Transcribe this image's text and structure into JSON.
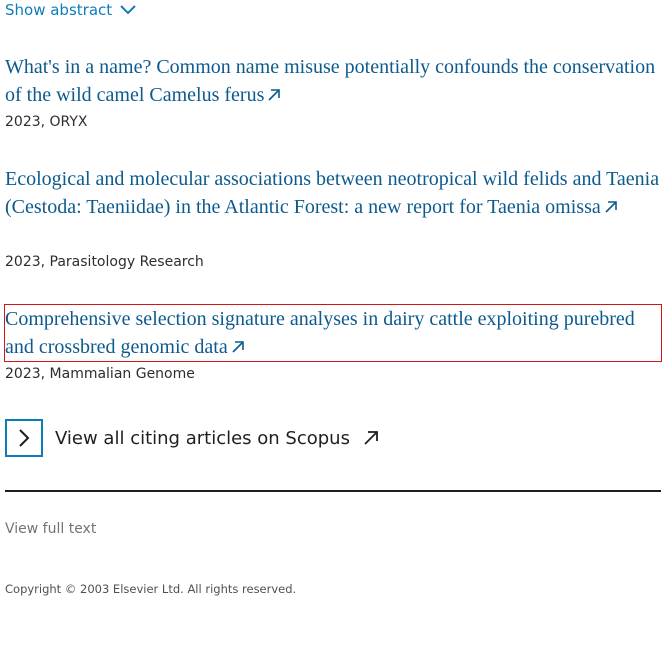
{
  "abstract_toggle": {
    "label": "Show abstract",
    "icon": "chevron-down-icon",
    "color": "#0c7dbb"
  },
  "citing_articles": [
    {
      "title": "What's in a name? Common name misuse potentially confounds the conservation of the wild camel Camelus ferus",
      "meta": "2023, ORYX"
    },
    {
      "title": "Ecological and molecular associations between neotropical wild felids and Taenia (Cestoda: Taeniidae) in the Atlantic Forest: a new report for Taenia omissa",
      "meta": "2023, Parasitology Research"
    },
    {
      "title": "Comprehensive selection signature analyses in dairy cattle exploiting purebred and crossbred genomic data",
      "meta": "2023, Mammalian Genome"
    }
  ],
  "scopus": {
    "label": "View all citing articles on Scopus",
    "icon": "external-link-arrow-icon"
  },
  "footer": {
    "view_full_text": "View full text",
    "copyright": "Copyright © 2003 Elsevier Ltd. All rights reserved."
  },
  "colors": {
    "link": "#0c5a8e",
    "accent": "#0c7dbb",
    "highlight": "#d01515"
  }
}
